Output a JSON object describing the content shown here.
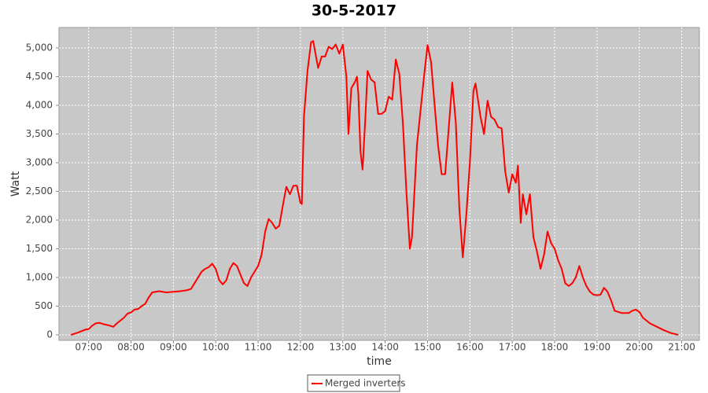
{
  "chart_data": {
    "type": "line",
    "title": "30-5-2017",
    "x_label": "time",
    "y_label": "Watt",
    "x": [
      "06:35",
      "06:45",
      "06:55",
      "07:00",
      "07:05",
      "07:10",
      "07:15",
      "07:20",
      "07:30",
      "07:35",
      "07:40",
      "07:50",
      "07:55",
      "08:00",
      "08:05",
      "08:10",
      "08:15",
      "08:20",
      "08:25",
      "08:30",
      "08:40",
      "08:50",
      "09:00",
      "09:10",
      "09:20",
      "09:25",
      "09:30",
      "09:40",
      "09:45",
      "09:50",
      "09:55",
      "10:00",
      "10:05",
      "10:10",
      "10:15",
      "10:20",
      "10:25",
      "10:30",
      "10:35",
      "10:40",
      "10:45",
      "10:50",
      "11:00",
      "11:05",
      "11:10",
      "11:15",
      "11:20",
      "11:25",
      "11:30",
      "11:35",
      "11:40",
      "11:45",
      "11:50",
      "11:55",
      "12:00",
      "12:02",
      "12:05",
      "12:10",
      "12:15",
      "12:18",
      "12:25",
      "12:30",
      "12:35",
      "12:40",
      "12:45",
      "12:50",
      "12:55",
      "13:00",
      "13:05",
      "13:08",
      "13:12",
      "13:17",
      "13:20",
      "13:22",
      "13:25",
      "13:28",
      "13:32",
      "13:35",
      "13:40",
      "13:45",
      "13:50",
      "13:55",
      "14:00",
      "14:05",
      "14:10",
      "14:15",
      "14:20",
      "14:25",
      "14:30",
      "14:35",
      "14:38",
      "14:45",
      "14:50",
      "14:55",
      "15:00",
      "15:05",
      "15:10",
      "15:15",
      "15:20",
      "15:25",
      "15:30",
      "15:35",
      "15:40",
      "15:45",
      "15:50",
      "15:55",
      "16:00",
      "16:05",
      "16:08",
      "16:15",
      "16:20",
      "16:25",
      "16:30",
      "16:35",
      "16:40",
      "16:45",
      "16:50",
      "16:55",
      "17:00",
      "17:05",
      "17:08",
      "17:12",
      "17:15",
      "17:20",
      "17:25",
      "17:30",
      "17:35",
      "17:40",
      "17:45",
      "17:50",
      "17:55",
      "18:00",
      "18:05",
      "18:10",
      "18:15",
      "18:20",
      "18:25",
      "18:30",
      "18:35",
      "18:40",
      "18:45",
      "18:50",
      "18:55",
      "19:00",
      "19:05",
      "19:10",
      "19:15",
      "19:20",
      "19:25",
      "19:35",
      "19:45",
      "19:50",
      "19:55",
      "20:00",
      "20:05",
      "20:15",
      "20:25",
      "20:35",
      "20:45",
      "20:55"
    ],
    "series": [
      {
        "name": "Merged inverters",
        "color": "#ff0000",
        "values": [
          0,
          40,
          90,
          100,
          160,
          200,
          210,
          190,
          160,
          140,
          200,
          300,
          370,
          390,
          440,
          450,
          500,
          540,
          650,
          740,
          760,
          740,
          750,
          760,
          780,
          800,
          900,
          1100,
          1150,
          1180,
          1240,
          1150,
          950,
          880,
          950,
          1150,
          1250,
          1200,
          1050,
          900,
          850,
          1000,
          1200,
          1400,
          1800,
          2020,
          1950,
          1850,
          1900,
          2250,
          2580,
          2450,
          2600,
          2600,
          2300,
          2280,
          3800,
          4600,
          5100,
          5120,
          4650,
          4850,
          4850,
          5020,
          4980,
          5060,
          4900,
          5060,
          4500,
          3500,
          4300,
          4400,
          4500,
          4200,
          3200,
          2880,
          3800,
          4600,
          4450,
          4400,
          3850,
          3850,
          3900,
          4150,
          4100,
          4800,
          4550,
          3700,
          2500,
          1500,
          1700,
          3300,
          3900,
          4500,
          5050,
          4750,
          4000,
          3300,
          2800,
          2800,
          3600,
          4400,
          3700,
          2200,
          1350,
          2100,
          3000,
          4250,
          4380,
          3800,
          3500,
          4080,
          3800,
          3750,
          3620,
          3600,
          2850,
          2480,
          2800,
          2650,
          2950,
          1950,
          2450,
          2100,
          2450,
          1700,
          1450,
          1150,
          1400,
          1800,
          1600,
          1500,
          1300,
          1150,
          900,
          850,
          900,
          1000,
          1200,
          1000,
          850,
          750,
          700,
          690,
          700,
          820,
          750,
          600,
          420,
          380,
          380,
          420,
          440,
          400,
          300,
          200,
          140,
          80,
          30,
          0
        ]
      }
    ],
    "xlim": [
      "06:18",
      "21:25"
    ],
    "xticks": [
      "07:00",
      "08:00",
      "09:00",
      "10:00",
      "11:00",
      "12:00",
      "13:00",
      "14:00",
      "15:00",
      "16:00",
      "17:00",
      "18:00",
      "19:00",
      "20:00",
      "21:00"
    ],
    "ylim": [
      -96,
      5356
    ],
    "yticks": [
      0,
      500,
      {
        "value": 1000,
        "label": "1,000"
      },
      {
        "value": 1500,
        "label": "1,500"
      },
      {
        "value": 2000,
        "label": "2,000"
      },
      {
        "value": 2500,
        "label": "2,500"
      },
      {
        "value": 3000,
        "label": "3,000"
      },
      {
        "value": 3500,
        "label": "3,500"
      },
      {
        "value": 4000,
        "label": "4,000"
      },
      {
        "value": 4500,
        "label": "4,500"
      },
      {
        "value": 5000,
        "label": "5,000"
      }
    ],
    "grid": true,
    "legend": "bottom"
  }
}
